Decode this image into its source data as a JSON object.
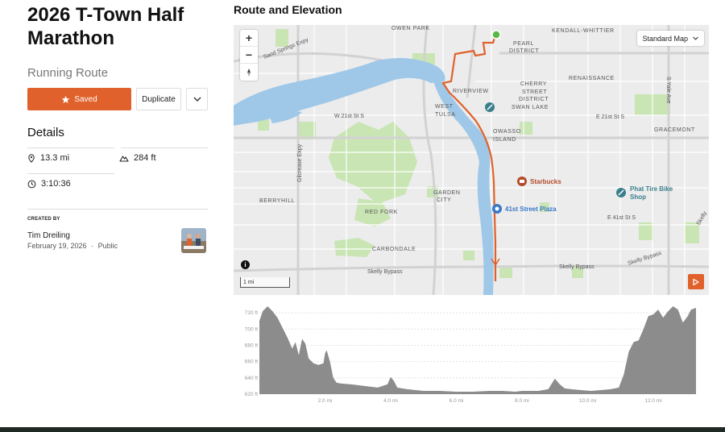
{
  "route": {
    "title": "2026 T-Town Half Marathon",
    "type": "Running Route"
  },
  "actions": {
    "saved_label": "Saved",
    "duplicate_label": "Duplicate",
    "more_icon": "chevron-down-icon"
  },
  "details": {
    "heading": "Details",
    "distance": "13.3 mi",
    "elevation_gain": "284 ft",
    "duration": "3:10:36"
  },
  "creator": {
    "label": "CREATED BY",
    "name": "Tim Dreiling",
    "date": "February 19, 2026",
    "separator": "·",
    "visibility": "Public"
  },
  "map": {
    "heading": "Route and Elevation",
    "map_type": "Standard Map",
    "scale_label": "1 mi",
    "labels": {
      "owen_park": "OWEN PARK",
      "kendall_whittier": "KENDALL-WHITTIER",
      "pearl_district_1": "PEARL",
      "pearl_district_2": "DISTRICT",
      "sand_springs": "Sand Springs Expy",
      "renaissance": "RENAISSANCE",
      "riverview": "RIVERVIEW",
      "cherry_1": "CHERRY",
      "cherry_2": "STREET",
      "cherry_3": "DISTRICT",
      "swan_lake": "SWAN LAKE",
      "yale": "S Yale Ave",
      "west_tulsa_1": "WEST",
      "west_tulsa_2": "TULSA",
      "w21st": "W 21st St S",
      "e21st": "E 21st St S",
      "gracemont": "GRACEMONT",
      "owasso_1": "OWASSO",
      "owasso_2": "ISLAND",
      "gilcrease": "Gilcrease Expy",
      "starbucks": "Starbucks",
      "phat_tire_1": "Phat Tire Bike",
      "phat_tire_2": "Shop",
      "berryhill": "BERRYHILL",
      "garden_1": "GARDEN",
      "garden_2": "CITY",
      "red_fork": "RED FORK",
      "street41": "41st Street Plaza",
      "e41st": "E 41st St S",
      "skelly_e": "Skelly",
      "carbondale": "CARBONDALE",
      "skelly_bypass_w": "Skelly Bypass",
      "skelly_bypass_mid": "Skelly Bypass",
      "skelly_bypass_e": "Skelly Bypass"
    },
    "colors": {
      "route": "#e0612b",
      "water": "#9fc8e8",
      "park": "#c6e4b0",
      "start": "#58b947"
    }
  },
  "chart_data": {
    "type": "area",
    "title": "",
    "xlabel": "",
    "ylabel": "",
    "ylim": [
      620,
      730
    ],
    "xlim": [
      0,
      13.3
    ],
    "y_ticks": [
      "720 ft",
      "700 ft",
      "680 ft",
      "660 ft",
      "640 ft",
      "620 ft"
    ],
    "x_ticks": [
      "2.0 mi",
      "4.0 mi",
      "6.0 mi",
      "8.0 mi",
      "10.0 mi",
      "12.0 mi"
    ],
    "x": [
      0,
      0.1,
      0.25,
      0.4,
      0.55,
      0.7,
      0.85,
      1.0,
      1.1,
      1.2,
      1.3,
      1.4,
      1.5,
      1.65,
      1.8,
      1.95,
      2.0,
      2.05,
      2.15,
      2.25,
      2.35,
      2.5,
      2.8,
      3.2,
      3.6,
      3.9,
      4.0,
      4.1,
      4.2,
      4.5,
      5.0,
      5.5,
      6.0,
      6.5,
      7.0,
      7.4,
      7.8,
      8.0,
      8.5,
      8.8,
      9.0,
      9.15,
      9.3,
      9.5,
      9.8,
      10.1,
      10.4,
      10.7,
      10.95,
      11.1,
      11.25,
      11.4,
      11.55,
      11.7,
      11.85,
      12.0,
      12.15,
      12.3,
      12.45,
      12.6,
      12.75,
      12.9,
      13.05,
      13.15,
      13.3
    ],
    "y": [
      710,
      722,
      728,
      722,
      714,
      702,
      690,
      676,
      684,
      668,
      688,
      682,
      664,
      658,
      656,
      658,
      670,
      674,
      660,
      640,
      634,
      633,
      632,
      630,
      628,
      632,
      641,
      636,
      628,
      626,
      624,
      624,
      623,
      623,
      624,
      624,
      623,
      624,
      624,
      626,
      639,
      632,
      627,
      626,
      625,
      624,
      625,
      626,
      628,
      644,
      672,
      684,
      686,
      700,
      716,
      718,
      724,
      714,
      722,
      728,
      724,
      708,
      716,
      724,
      726
    ]
  }
}
